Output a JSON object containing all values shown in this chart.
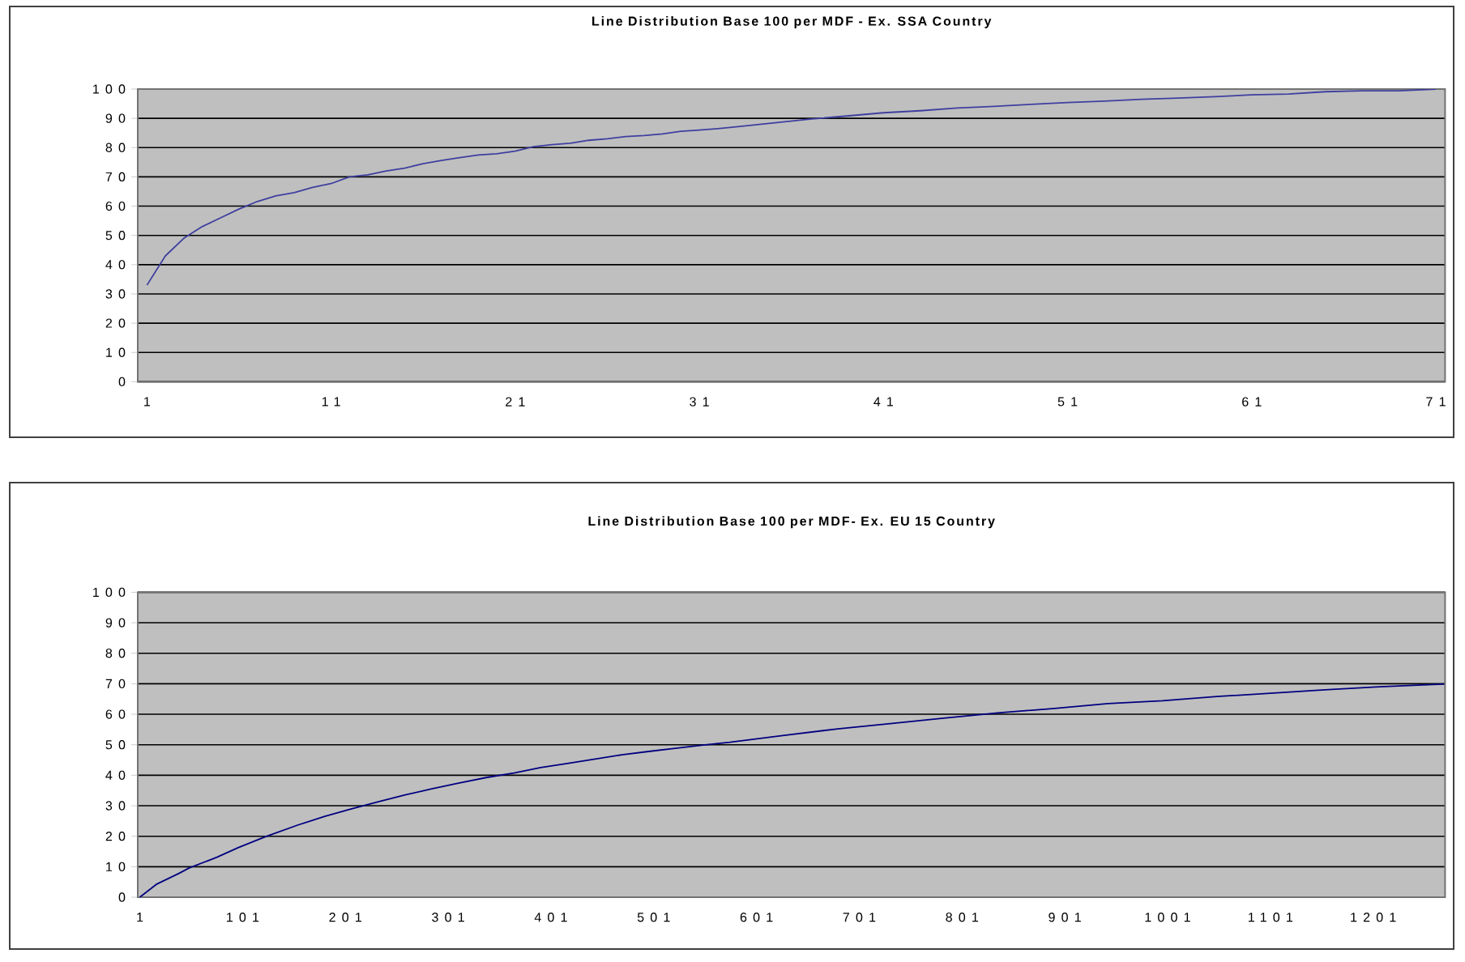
{
  "chart_data": [
    {
      "type": "line",
      "title": "Line Distribution Base 100 per MDF - Ex. SSA Country",
      "x": [
        1,
        2,
        3,
        4,
        5,
        6,
        7,
        8,
        9,
        10,
        11,
        12,
        13,
        14,
        15,
        16,
        17,
        18,
        19,
        20,
        21,
        22,
        23,
        24,
        25,
        26,
        27,
        28,
        29,
        30,
        31,
        32,
        33,
        35,
        37,
        39,
        41,
        43,
        45,
        47,
        49,
        51,
        53,
        55,
        57,
        59,
        61,
        63,
        65,
        67,
        69,
        71
      ],
      "series": [
        {
          "color": "#3f3fa0",
          "values": [
            33,
            43,
            49,
            53,
            56,
            59,
            61.6,
            63.5,
            64.6,
            66.4,
            67.7,
            70,
            70.7,
            72,
            73,
            74.5,
            75.6,
            76.6,
            77.5,
            77.9,
            78.8,
            80.3,
            81,
            81.5,
            82.5,
            83,
            83.8,
            84.1,
            84.7,
            85.6,
            86,
            86.5,
            87.1,
            88.4,
            89.7,
            90.8,
            91.9,
            92.6,
            93.5,
            94.1,
            94.8,
            95.4,
            95.9,
            96.5,
            96.9,
            97.4,
            98,
            98.3,
            99.1,
            99.4,
            99.4,
            100
          ]
        }
      ],
      "xlim": [
        0.5,
        71.5
      ],
      "xticks": [
        1,
        11,
        21,
        31,
        41,
        51,
        61,
        71
      ],
      "ylim": [
        0,
        100
      ],
      "yticks": [
        0,
        10,
        20,
        30,
        40,
        50,
        60,
        70,
        80,
        90,
        100
      ],
      "grid": "y"
    },
    {
      "type": "line",
      "title": "Line Distribution Base 100 per MDF- Ex. EU 15 Country",
      "x": [
        1,
        17,
        39,
        49,
        76,
        97,
        123,
        155,
        181,
        207,
        233,
        260,
        286,
        312,
        339,
        365,
        391,
        418,
        444,
        470,
        496,
        522,
        549,
        575,
        628,
        680,
        733,
        785,
        838,
        891,
        943,
        996,
        1049,
        1101,
        1154,
        1207,
        1270
      ],
      "series": [
        {
          "color": "#000080",
          "values": [
            0,
            4.2,
            7.8,
            9.6,
            13.1,
            16.3,
            19.8,
            23.7,
            26.5,
            29,
            31.3,
            33.6,
            35.6,
            37.5,
            39.3,
            40.7,
            42.5,
            43.9,
            45.3,
            46.7,
            47.8,
            48.8,
            49.9,
            50.8,
            53.1,
            55.2,
            57,
            58.8,
            60.5,
            61.9,
            63.5,
            64.4,
            65.8,
            66.9,
            68,
            69,
            69.9
          ]
        }
      ],
      "xlim": [
        -1,
        1271
      ],
      "xticks": [
        1,
        101,
        201,
        301,
        401,
        501,
        601,
        701,
        801,
        901,
        1001,
        1101,
        1201
      ],
      "ylim": [
        0,
        100
      ],
      "yticks": [
        0,
        10,
        20,
        30,
        40,
        50,
        60,
        70,
        80,
        90,
        100
      ],
      "grid": "y"
    }
  ]
}
